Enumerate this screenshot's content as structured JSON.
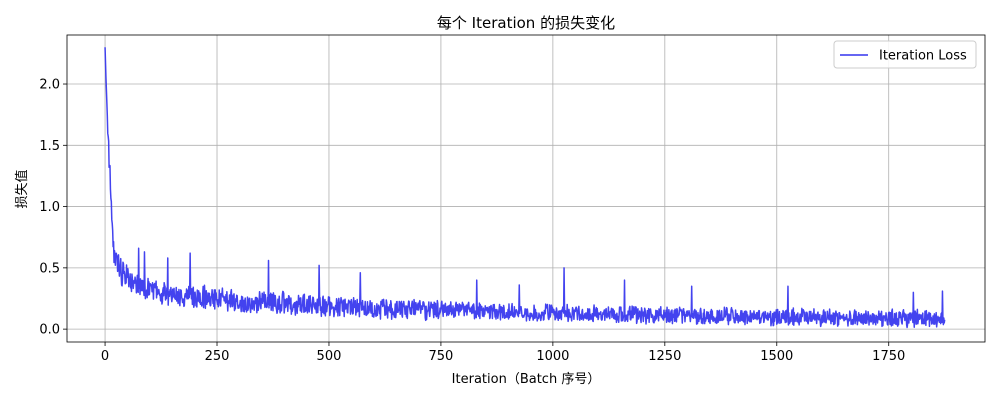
{
  "chart_data": {
    "type": "line",
    "title": "每个 Iteration 的损失变化",
    "xlabel": "Iteration（Batch 序号）",
    "ylabel": "损失值",
    "xlim": [
      -85,
      1965
    ],
    "ylim": [
      -0.105,
      2.4
    ],
    "xticks": [
      0,
      250,
      500,
      750,
      1000,
      1250,
      1500,
      1750
    ],
    "yticks": [
      0.0,
      0.5,
      1.0,
      1.5,
      2.0
    ],
    "xtick_labels": [
      "0",
      "250",
      "500",
      "750",
      "1000",
      "1250",
      "1500",
      "1750"
    ],
    "ytick_labels": [
      "0.0",
      "0.5",
      "1.0",
      "1.5",
      "2.0"
    ],
    "grid": true,
    "legend_position": "top-right",
    "series": [
      {
        "name": "Iteration Loss",
        "color": "#3333ee",
        "num_points": 1876,
        "anchor_x": [
          0,
          2,
          4,
          6,
          8,
          10,
          12,
          14,
          16,
          18,
          20,
          25,
          30,
          40,
          50,
          60,
          80,
          100,
          150,
          200,
          250,
          300,
          400,
          500,
          600,
          700,
          800,
          900,
          1000,
          1100,
          1200,
          1300,
          1400,
          1500,
          1600,
          1700,
          1800,
          1875
        ],
        "anchor_y": [
          2.3,
          2.05,
          1.85,
          1.65,
          1.45,
          1.3,
          1.2,
          1.05,
          0.85,
          0.75,
          0.66,
          0.58,
          0.52,
          0.46,
          0.42,
          0.38,
          0.34,
          0.31,
          0.28,
          0.26,
          0.25,
          0.23,
          0.21,
          0.19,
          0.17,
          0.16,
          0.15,
          0.14,
          0.13,
          0.12,
          0.115,
          0.11,
          0.105,
          0.1,
          0.095,
          0.09,
          0.09,
          0.085
        ],
        "noise_amplitude": [
          0.0,
          0.0,
          0.0,
          0.05,
          0.08,
          0.1,
          0.12,
          0.12,
          0.13,
          0.12,
          0.12,
          0.11,
          0.1,
          0.1,
          0.09,
          0.09,
          0.08,
          0.08,
          0.08,
          0.08,
          0.08,
          0.08,
          0.08,
          0.07,
          0.07,
          0.07,
          0.06,
          0.06,
          0.06,
          0.06,
          0.06,
          0.06,
          0.06,
          0.06,
          0.06,
          0.06,
          0.06,
          0.06
        ],
        "spikes": [
          {
            "x": 75,
            "y": 0.66
          },
          {
            "x": 88,
            "y": 0.63
          },
          {
            "x": 140,
            "y": 0.58
          },
          {
            "x": 190,
            "y": 0.62
          },
          {
            "x": 365,
            "y": 0.56
          },
          {
            "x": 478,
            "y": 0.52
          },
          {
            "x": 570,
            "y": 0.46
          },
          {
            "x": 830,
            "y": 0.4
          },
          {
            "x": 925,
            "y": 0.36
          },
          {
            "x": 1025,
            "y": 0.5
          },
          {
            "x": 1160,
            "y": 0.4
          },
          {
            "x": 1310,
            "y": 0.35
          },
          {
            "x": 1525,
            "y": 0.35
          },
          {
            "x": 1805,
            "y": 0.3
          },
          {
            "x": 1870,
            "y": 0.31
          }
        ]
      }
    ]
  }
}
